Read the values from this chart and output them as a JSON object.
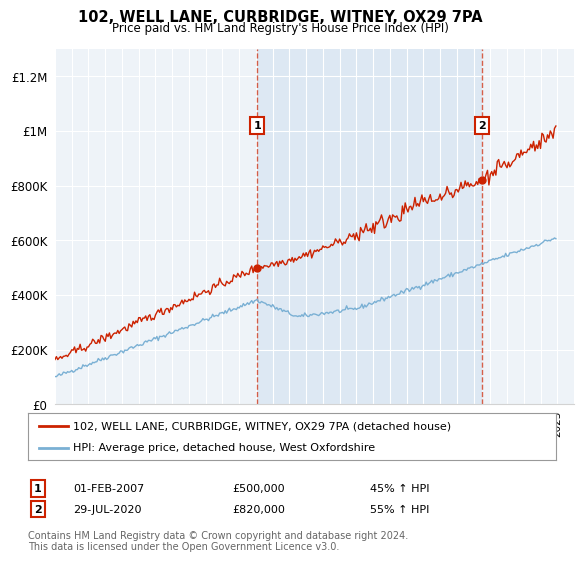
{
  "title": "102, WELL LANE, CURBRIDGE, WITNEY, OX29 7PA",
  "subtitle": "Price paid vs. HM Land Registry's House Price Index (HPI)",
  "legend_line1": "102, WELL LANE, CURBRIDGE, WITNEY, OX29 7PA (detached house)",
  "legend_line2": "HPI: Average price, detached house, West Oxfordshire",
  "annotation1_label": "1",
  "annotation1_date": "01-FEB-2007",
  "annotation1_price": "£500,000",
  "annotation1_hpi": "45% ↑ HPI",
  "annotation2_label": "2",
  "annotation2_date": "29-JUL-2020",
  "annotation2_price": "£820,000",
  "annotation2_hpi": "55% ↑ HPI",
  "footer": "Contains HM Land Registry data © Crown copyright and database right 2024.\nThis data is licensed under the Open Government Licence v3.0.",
  "red_color": "#cc2200",
  "blue_color": "#7ab0d4",
  "shade_color": "#ddeeff",
  "background_color": "#ffffff",
  "plot_bg_color": "#f0f4f8",
  "ylim": [
    0,
    1300000
  ],
  "yticks": [
    0,
    200000,
    400000,
    600000,
    800000,
    1000000,
    1200000
  ],
  "ytick_labels": [
    "£0",
    "£200K",
    "£400K",
    "£600K",
    "£800K",
    "£1M",
    "£1.2M"
  ],
  "xmin": 1995,
  "xmax": 2026
}
